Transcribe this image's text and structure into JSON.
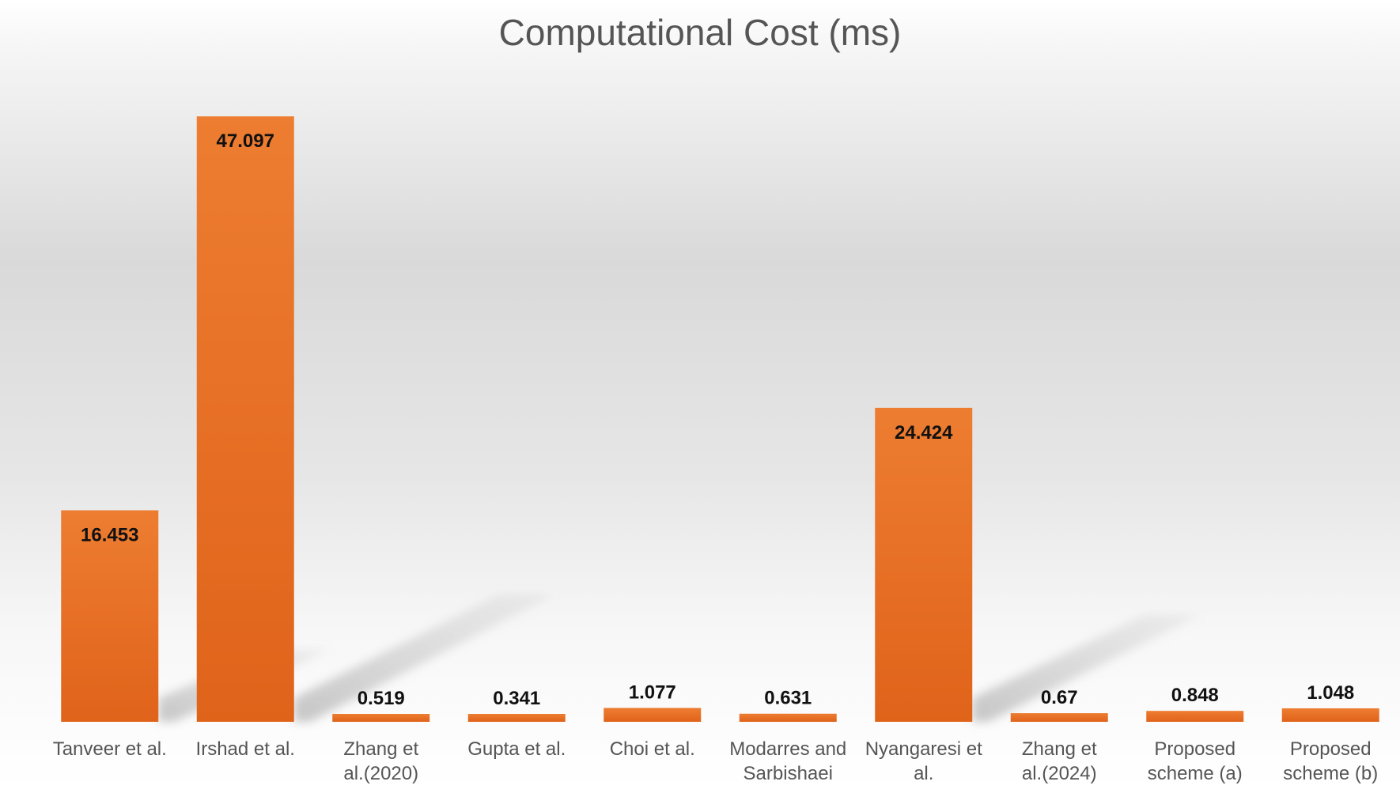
{
  "colors": {
    "bar_top": "#ED7D31",
    "bar_bottom": "#E0631A",
    "text": "#555555"
  },
  "chart_data": {
    "type": "bar",
    "title": "Computational Cost (ms)",
    "xlabel": "",
    "ylabel": "",
    "ylim": [
      0,
      50
    ],
    "grid": false,
    "legend": "none",
    "categories": [
      [
        "Tanveer et al."
      ],
      [
        "Irshad et al."
      ],
      [
        "Zhang et",
        "al.(2020)"
      ],
      [
        "Gupta et al."
      ],
      [
        "Choi et al."
      ],
      [
        "Modarres and",
        "Sarbishaei"
      ],
      [
        "Nyangaresi et",
        "al."
      ],
      [
        "Zhang et",
        "al.(2024)"
      ],
      [
        "Proposed",
        "scheme (a)"
      ],
      [
        "Proposed",
        "scheme (b)"
      ]
    ],
    "values": [
      16.453,
      47.097,
      0.519,
      0.341,
      1.077,
      0.631,
      24.424,
      0.67,
      0.848,
      1.048
    ],
    "value_labels": [
      "16.453",
      "47.097",
      "0.519",
      "0.341",
      "1.077",
      "0.631",
      "24.424",
      "0.67",
      "0.848",
      "1.048"
    ]
  }
}
